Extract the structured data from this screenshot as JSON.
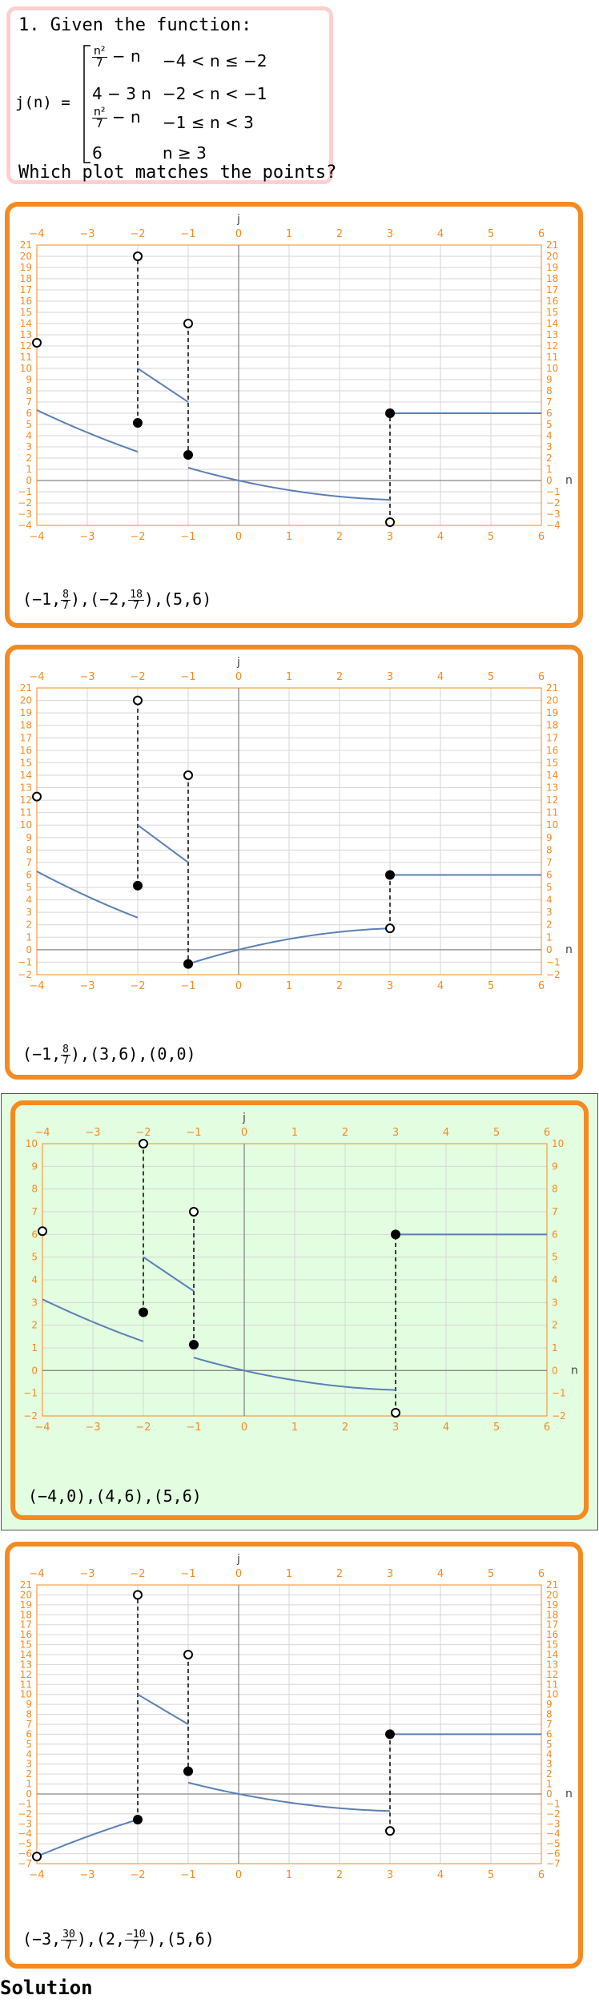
{
  "question": {
    "prompt": "1. Given the function:",
    "function_name": "j(n) =",
    "pieces": [
      {
        "expr_num": "n²",
        "expr_den": "7",
        "expr_rest": " − n",
        "cond": "−4 < n ≤ −2"
      },
      {
        "expr": "4 − 3 n",
        "cond": "−2 < n < −1"
      },
      {
        "expr_num": "n²",
        "expr_den": "7",
        "expr_rest": " − n",
        "cond": "−1 ≤ n < 3"
      },
      {
        "expr": "6",
        "cond": "n ≥ 3"
      }
    ],
    "ask": "Which plot matches the points?"
  },
  "colors": {
    "accent": "#f58a1f",
    "curve": "#5a7fb5",
    "selected_bg": "#e2fde0",
    "question_border": "#fbd0d0"
  },
  "options": [
    {
      "selected": false,
      "axis_y_label": "j",
      "axis_x_label": "n",
      "xlim": [
        -4,
        6
      ],
      "ylim": [
        -4,
        21
      ],
      "x_ticks": [
        -4,
        -3,
        -2,
        -1,
        0,
        1,
        2,
        3,
        4,
        5,
        6
      ],
      "y_ticks": [
        -4,
        -3,
        -2,
        -1,
        0,
        1,
        2,
        3,
        4,
        5,
        6,
        7,
        8,
        9,
        10,
        11,
        12,
        13,
        14,
        15,
        16,
        17,
        18,
        19,
        20,
        21
      ],
      "caption": [
        [
          "-1",
          "8",
          "7"
        ],
        [
          "-2",
          "18",
          "7"
        ],
        [
          "5",
          "6"
        ]
      ],
      "segments": [
        {
          "f": "n*n/7 - n",
          "from": -4,
          "to": -2
        },
        {
          "f": "4 - 3*n",
          "from": -2,
          "to": -1
        },
        {
          "f": "n*n/7 - n",
          "from": -1,
          "to": 3
        },
        {
          "f": "6",
          "from": 3,
          "to": 6
        }
      ],
      "points": [
        {
          "x": -4,
          "y": 12.2857,
          "filled": false
        },
        {
          "x": -2,
          "y": 5.1429,
          "filled": true
        },
        {
          "x": -2,
          "y": 20,
          "filled": false
        },
        {
          "x": -1,
          "y": 14,
          "filled": false
        },
        {
          "x": -1,
          "y": 2.2857,
          "filled": true
        },
        {
          "x": 3,
          "y": -3.7143,
          "filled": false
        },
        {
          "x": 3,
          "y": 6,
          "filled": true
        }
      ],
      "dashes": [
        {
          "x": -2,
          "y1": 5.1429,
          "y2": 20
        },
        {
          "x": -1,
          "y1": 14,
          "y2": 2.2857
        },
        {
          "x": 3,
          "y1": -3.7143,
          "y2": 6
        }
      ]
    },
    {
      "selected": false,
      "axis_y_label": "j",
      "axis_x_label": "n",
      "xlim": [
        -4,
        6
      ],
      "ylim": [
        -2,
        21
      ],
      "x_ticks": [
        -4,
        -3,
        -2,
        -1,
        0,
        1,
        2,
        3,
        4,
        5,
        6
      ],
      "y_ticks": [
        -2,
        -1,
        0,
        1,
        2,
        3,
        4,
        5,
        6,
        7,
        8,
        9,
        10,
        11,
        12,
        13,
        14,
        15,
        16,
        17,
        18,
        19,
        20,
        21
      ],
      "caption": [
        [
          "-1",
          "8",
          "7"
        ],
        [
          "3",
          "6"
        ],
        [
          "0",
          "0"
        ]
      ],
      "segments": [
        {
          "f": "n*n/7 - n",
          "from": -4,
          "to": -2
        },
        {
          "f": "4 - 3*n",
          "from": -2,
          "to": -1
        },
        {
          "f": "-n*n/7 + n",
          "from": -1,
          "to": 3
        },
        {
          "f": "6",
          "from": 3,
          "to": 6
        }
      ],
      "points": [
        {
          "x": -4,
          "y": 12.2857,
          "filled": false
        },
        {
          "x": -2,
          "y": 5.1429,
          "filled": true
        },
        {
          "x": -2,
          "y": 20,
          "filled": false
        },
        {
          "x": -1,
          "y": 14,
          "filled": false
        },
        {
          "x": -1,
          "y": -1.1429,
          "filled": true
        },
        {
          "x": 3,
          "y": 1.7143,
          "filled": false
        },
        {
          "x": 3,
          "y": 6,
          "filled": true
        }
      ],
      "dashes": [
        {
          "x": -2,
          "y1": 5.1429,
          "y2": 20
        },
        {
          "x": -1,
          "y1": 14,
          "y2": -1.1429
        },
        {
          "x": 3,
          "y1": 1.7143,
          "y2": 6
        }
      ]
    },
    {
      "selected": true,
      "axis_y_label": "j",
      "axis_x_label": "n",
      "xlim": [
        -4,
        6
      ],
      "ylim": [
        -2,
        10
      ],
      "x_ticks": [
        -4,
        -3,
        -2,
        -1,
        0,
        1,
        2,
        3,
        4,
        5,
        6
      ],
      "y_ticks": [
        -2,
        -1,
        0,
        1,
        2,
        3,
        4,
        5,
        6,
        7,
        8,
        9,
        10
      ],
      "caption": [
        [
          "-4",
          "0"
        ],
        [
          "4",
          "6"
        ],
        [
          "5",
          "6"
        ]
      ],
      "segments": [
        {
          "f": "(n*n/7 - n)/2",
          "from": -4,
          "to": -2
        },
        {
          "f": "(4 - 3*n)/2",
          "from": -2,
          "to": -1
        },
        {
          "f": "(n*n/7 - n)/2",
          "from": -1,
          "to": 3
        },
        {
          "f": "6",
          "from": 3,
          "to": 6
        }
      ],
      "points": [
        {
          "x": -4,
          "y": 6.1429,
          "filled": false
        },
        {
          "x": -2,
          "y": 2.5714,
          "filled": true
        },
        {
          "x": -2,
          "y": 10,
          "filled": false
        },
        {
          "x": -1,
          "y": 7,
          "filled": false
        },
        {
          "x": -1,
          "y": 1.1429,
          "filled": true
        },
        {
          "x": 3,
          "y": -1.8571,
          "filled": false
        },
        {
          "x": 3,
          "y": 6,
          "filled": true
        }
      ],
      "dashes": [
        {
          "x": -2,
          "y1": 2.5714,
          "y2": 10
        },
        {
          "x": -1,
          "y1": 7,
          "y2": 1.1429
        },
        {
          "x": 3,
          "y1": -1.8571,
          "y2": 6
        }
      ]
    },
    {
      "selected": false,
      "axis_y_label": "j",
      "axis_x_label": "n",
      "xlim": [
        -4,
        6
      ],
      "ylim": [
        -7,
        21
      ],
      "x_ticks": [
        -4,
        -3,
        -2,
        -1,
        0,
        1,
        2,
        3,
        4,
        5,
        6
      ],
      "y_ticks": [
        -7,
        -6,
        -5,
        -4,
        -3,
        -2,
        -1,
        0,
        1,
        2,
        3,
        4,
        5,
        6,
        7,
        8,
        9,
        10,
        11,
        12,
        13,
        14,
        15,
        16,
        17,
        18,
        19,
        20,
        21
      ],
      "caption": [
        [
          "-3",
          "30",
          "7"
        ],
        [
          "2",
          "-10",
          "7"
        ],
        [
          "5",
          "6"
        ]
      ],
      "segments": [
        {
          "f": "-(n*n/7) + n",
          "from": -4,
          "to": -2
        },
        {
          "f": "4 - 3*n",
          "from": -2,
          "to": -1
        },
        {
          "f": "n*n/7 - n",
          "from": -1,
          "to": 3
        },
        {
          "f": "6",
          "from": 3,
          "to": 6
        }
      ],
      "points": [
        {
          "x": -4,
          "y": -6.2857,
          "filled": false
        },
        {
          "x": -2,
          "y": -2.5714,
          "filled": true
        },
        {
          "x": -2,
          "y": 20,
          "filled": false
        },
        {
          "x": -1,
          "y": 14,
          "filled": false
        },
        {
          "x": -1,
          "y": 2.2857,
          "filled": true
        },
        {
          "x": 3,
          "y": -3.7143,
          "filled": false
        },
        {
          "x": 3,
          "y": 6,
          "filled": true
        }
      ],
      "dashes": [
        {
          "x": -2,
          "y1": -2.5714,
          "y2": 20
        },
        {
          "x": -1,
          "y1": 14,
          "y2": 2.2857
        },
        {
          "x": 3,
          "y1": -3.7143,
          "y2": 6
        }
      ]
    }
  ],
  "solution_label": "Solution"
}
